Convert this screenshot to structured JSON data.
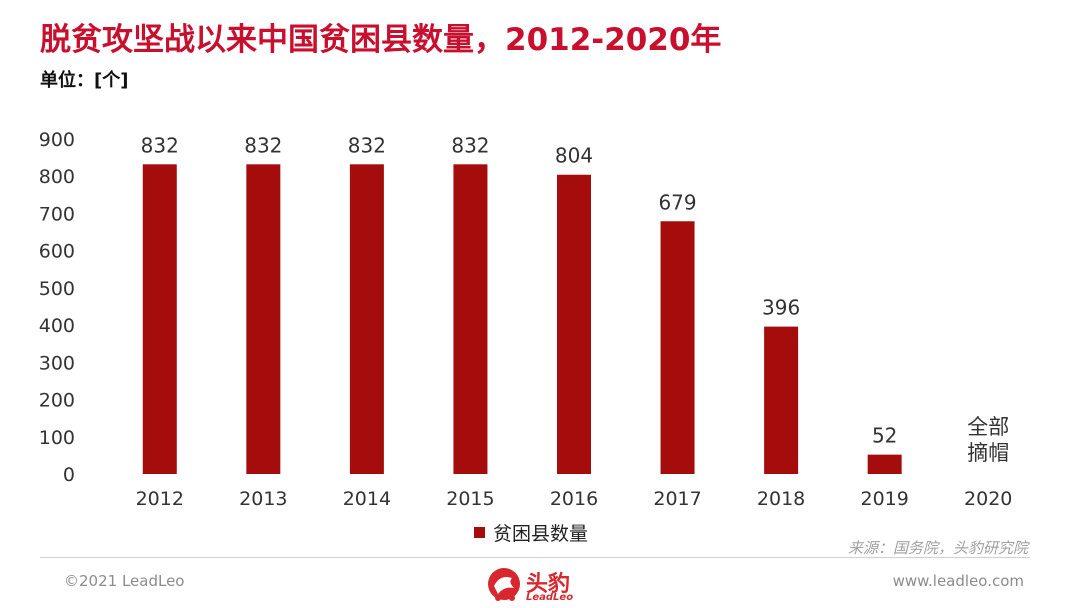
{
  "header": {
    "title": "脱贫攻坚战以来中国贫困县数量，2012-2020年",
    "unit": "单位：[个]"
  },
  "colors": {
    "accent": "#c8102e",
    "bar": "#a50d0d",
    "axis_text": "#333333"
  },
  "chart_data": {
    "type": "bar",
    "title": "脱贫攻坚战以来中国贫困县数量，2012-2020年",
    "xlabel": "",
    "ylabel": "",
    "unit": "单位：[个]",
    "categories": [
      "2012",
      "2013",
      "2014",
      "2015",
      "2016",
      "2017",
      "2018",
      "2019",
      "2020"
    ],
    "series": [
      {
        "name": "贫困县数量",
        "values": [
          832,
          832,
          832,
          832,
          804,
          679,
          396,
          52,
          0
        ],
        "labels": [
          "832",
          "832",
          "832",
          "832",
          "804",
          "679",
          "396",
          "52",
          "全部摘帽"
        ]
      }
    ],
    "ylim": [
      0,
      900
    ],
    "yticks": [
      0,
      100,
      200,
      300,
      400,
      500,
      600,
      700,
      800,
      900
    ],
    "grid": false,
    "legend": "bottom-center"
  },
  "footer": {
    "source": "来源：国务院，头豹研究院",
    "copyright": "©2021 LeadLeo",
    "website": "www.leadleo.com",
    "logo_cn": "头豹",
    "logo_en": "LeadLeo"
  }
}
